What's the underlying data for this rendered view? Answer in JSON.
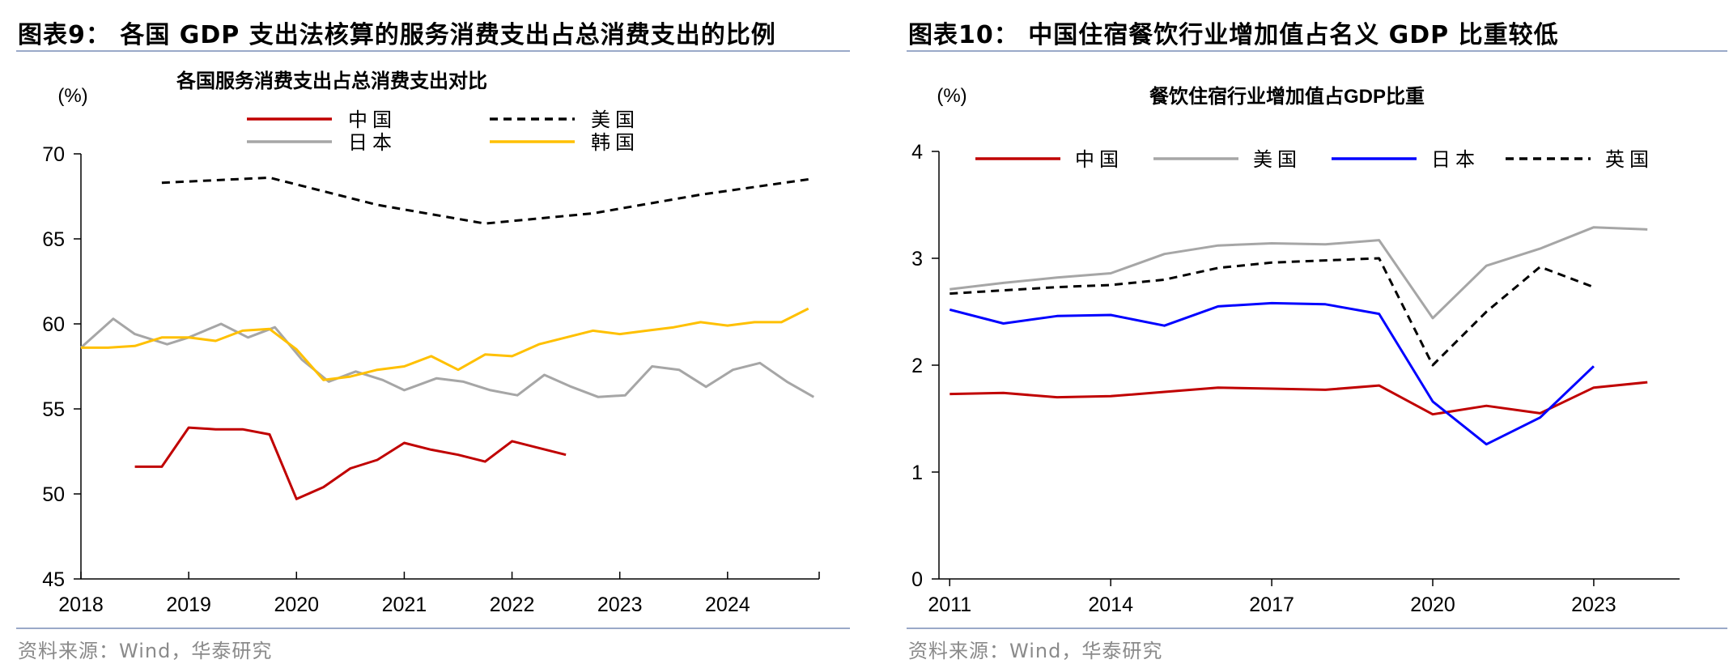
{
  "chart_data": [
    {
      "type": "line",
      "figure_title": "图表9：  各国 GDP 支出法核算的服务消费支出占总消费支出的比例",
      "title": "各国服务消费支出占总消费支出对比",
      "unit_label": "(%)",
      "source": "资料来源：Wind，华泰研究",
      "ylim": [
        45,
        70
      ],
      "yticks": [
        "45",
        "50",
        "55",
        "60",
        "65",
        "70"
      ],
      "xlim": [
        2018,
        2024.85
      ],
      "xticks": [
        "2018",
        "2019",
        "2020",
        "2021",
        "2022",
        "2023",
        "2024"
      ],
      "grid": false,
      "legend_position": "top-center",
      "series": [
        {
          "name": "中国",
          "color": "#c00000",
          "dash": "solid",
          "x": [
            2018.5,
            2018.75,
            2019.0,
            2019.25,
            2019.5,
            2019.75,
            2020.0,
            2020.25,
            2020.5,
            2020.75,
            2021.0,
            2021.25,
            2021.5,
            2021.75,
            2022.0,
            2022.25,
            2022.5
          ],
          "y": [
            51.6,
            51.6,
            53.9,
            53.8,
            53.8,
            53.5,
            49.7,
            50.4,
            51.5,
            52.0,
            53.0,
            52.6,
            52.3,
            51.9,
            53.1,
            52.7,
            52.3
          ]
        },
        {
          "name": "美国",
          "color": "#000000",
          "dash": "dashed",
          "x": [
            2018.75,
            2019.75,
            2020.75,
            2021.75,
            2022.75,
            2023.75,
            2024.75
          ],
          "y": [
            68.3,
            68.6,
            67.0,
            65.9,
            66.5,
            67.6,
            68.5
          ]
        },
        {
          "name": "日本",
          "color": "#a6a6a6",
          "dash": "solid",
          "x": [
            2018.0,
            2018.3,
            2018.5,
            2018.8,
            2019.0,
            2019.3,
            2019.55,
            2019.8,
            2020.05,
            2020.3,
            2020.55,
            2020.8,
            2021.0,
            2021.3,
            2021.55,
            2021.8,
            2022.05,
            2022.3,
            2022.55,
            2022.8,
            2023.05,
            2023.3,
            2023.55,
            2023.8,
            2024.05,
            2024.3,
            2024.55,
            2024.8
          ],
          "y": [
            58.6,
            60.3,
            59.4,
            58.8,
            59.2,
            60.0,
            59.2,
            59.8,
            57.9,
            56.6,
            57.2,
            56.7,
            56.1,
            56.8,
            56.6,
            56.1,
            55.8,
            57.0,
            56.3,
            55.7,
            55.8,
            57.5,
            57.3,
            56.3,
            57.3,
            57.7,
            56.6,
            55.7
          ]
        },
        {
          "name": "韩国",
          "color": "#ffc000",
          "dash": "solid",
          "x": [
            2018.0,
            2018.25,
            2018.5,
            2018.75,
            2019.0,
            2019.25,
            2019.5,
            2019.75,
            2020.0,
            2020.25,
            2020.5,
            2020.75,
            2021.0,
            2021.25,
            2021.5,
            2021.75,
            2022.0,
            2022.25,
            2022.5,
            2022.75,
            2023.0,
            2023.25,
            2023.5,
            2023.75,
            2024.0,
            2024.25,
            2024.5,
            2024.75
          ],
          "y": [
            58.6,
            58.6,
            58.7,
            59.2,
            59.2,
            59.0,
            59.6,
            59.7,
            58.5,
            56.7,
            56.9,
            57.3,
            57.5,
            58.1,
            57.3,
            58.2,
            58.1,
            58.8,
            59.2,
            59.6,
            59.4,
            59.6,
            59.8,
            60.1,
            59.9,
            60.1,
            60.1,
            60.9
          ]
        }
      ]
    },
    {
      "type": "line",
      "figure_title": "图表10：  中国住宿餐饮行业增加值占名义 GDP 比重较低",
      "title": "餐饮住宿行业增加值占GDP比重",
      "unit_label": "(%)",
      "source": "资料来源：Wind，华泰研究",
      "ylim": [
        0,
        4
      ],
      "yticks": [
        "0",
        "1",
        "2",
        "3",
        "4"
      ],
      "xlim": [
        2010.8,
        2024.6
      ],
      "xticks": [
        "2011",
        "2014",
        "2017",
        "2020",
        "2023"
      ],
      "grid": false,
      "legend_position": "top",
      "series": [
        {
          "name": "中国",
          "color": "#c00000",
          "dash": "solid",
          "x": [
            2011,
            2012,
            2013,
            2014,
            2015,
            2016,
            2017,
            2018,
            2019,
            2020,
            2021,
            2022,
            2023,
            2024
          ],
          "y": [
            1.73,
            1.74,
            1.7,
            1.71,
            1.75,
            1.79,
            1.78,
            1.77,
            1.81,
            1.54,
            1.62,
            1.55,
            1.79,
            1.84
          ]
        },
        {
          "name": "美国",
          "color": "#a6a6a6",
          "dash": "solid",
          "x": [
            2011,
            2012,
            2013,
            2014,
            2015,
            2016,
            2017,
            2018,
            2019,
            2020,
            2021,
            2022,
            2023,
            2024
          ],
          "y": [
            2.71,
            2.77,
            2.82,
            2.86,
            3.04,
            3.12,
            3.14,
            3.13,
            3.17,
            2.44,
            2.93,
            3.09,
            3.29,
            3.27
          ]
        },
        {
          "name": "日本",
          "color": "#0000ff",
          "dash": "solid",
          "x": [
            2011,
            2012,
            2013,
            2014,
            2015,
            2016,
            2017,
            2018,
            2019,
            2020,
            2021,
            2022,
            2023
          ],
          "y": [
            2.52,
            2.39,
            2.46,
            2.47,
            2.37,
            2.55,
            2.58,
            2.57,
            2.48,
            1.66,
            1.26,
            1.51,
            1.99
          ]
        },
        {
          "name": "英国",
          "color": "#000000",
          "dash": "dashed",
          "x": [
            2011,
            2012,
            2013,
            2014,
            2015,
            2016,
            2017,
            2018,
            2019,
            2020,
            2021,
            2022,
            2023
          ],
          "y": [
            2.67,
            2.7,
            2.73,
            2.75,
            2.8,
            2.91,
            2.96,
            2.98,
            3.0,
            2.0,
            2.5,
            2.92,
            2.73
          ]
        }
      ]
    }
  ]
}
